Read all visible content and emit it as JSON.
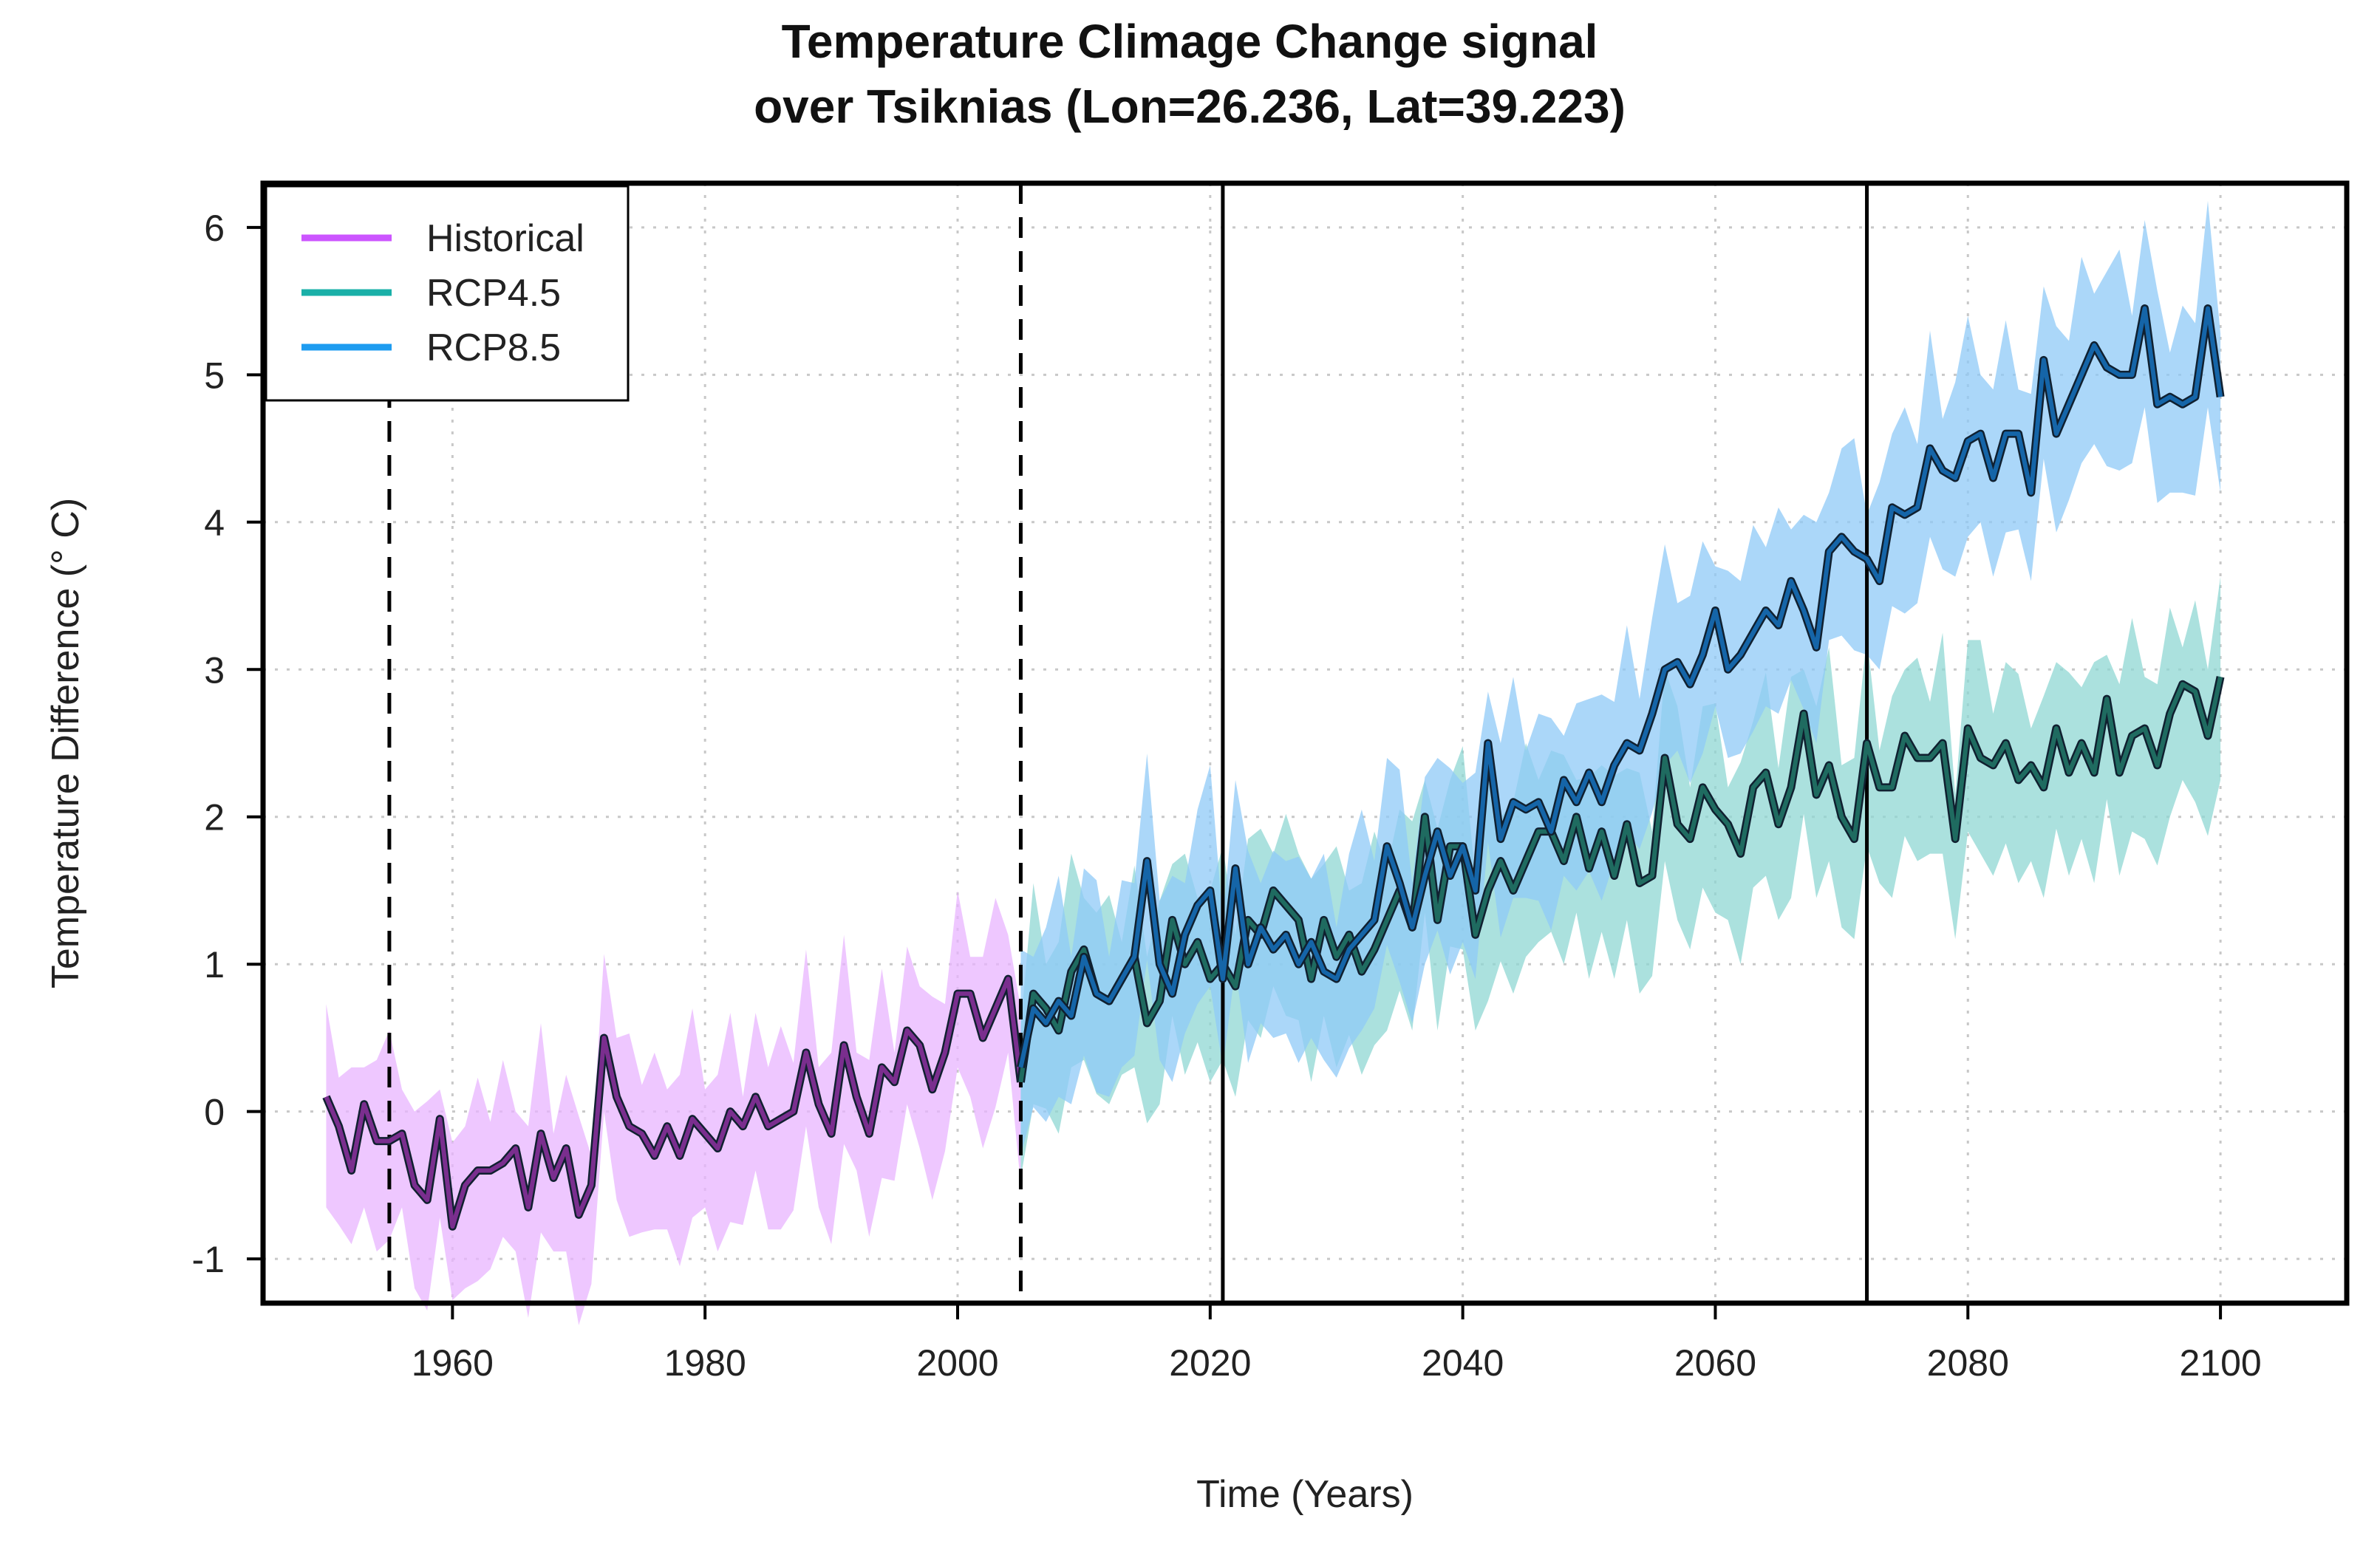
{
  "chart_data": {
    "type": "line",
    "title_line1": "Temperature Climage Change signal",
    "title_line2": "over Tsiknias (Lon=26.236, Lat=39.223)",
    "xlabel": "Time (Years)",
    "ylabel": "Temperature Difference (° C)",
    "xlim": [
      1945,
      2110
    ],
    "ylim": [
      -1.3,
      6.3
    ],
    "x_ticks": [
      1960,
      1980,
      2000,
      2020,
      2040,
      2060,
      2080,
      2100
    ],
    "x_tick_labels": [
      "1960",
      "1980",
      "2000",
      "2020",
      "2040",
      "2060",
      "2080",
      "2100"
    ],
    "y_ticks": [
      -1,
      0,
      1,
      2,
      3,
      4,
      5,
      6
    ],
    "y_tick_labels": [
      "-1",
      "0",
      "1",
      "2",
      "3",
      "4",
      "5",
      "6"
    ],
    "grid": true,
    "legend_position": "top-left",
    "vlines": [
      {
        "x": 1955,
        "style": "dashed"
      },
      {
        "x": 2005,
        "style": "dashed"
      },
      {
        "x": 2021,
        "style": "solid"
      },
      {
        "x": 2072,
        "style": "solid"
      }
    ],
    "series": [
      {
        "name": "Historical",
        "color": "#7a2e8e",
        "legend_color": "#cc55ff",
        "band_color": "#e8b4ff",
        "band_half_width": 0.45,
        "x": [
          1950,
          1951,
          1952,
          1953,
          1954,
          1955,
          1956,
          1957,
          1958,
          1959,
          1960,
          1961,
          1962,
          1963,
          1964,
          1965,
          1966,
          1967,
          1968,
          1969,
          1970,
          1971,
          1972,
          1973,
          1974,
          1975,
          1976,
          1977,
          1978,
          1979,
          1980,
          1981,
          1982,
          1983,
          1984,
          1985,
          1986,
          1987,
          1988,
          1989,
          1990,
          1991,
          1992,
          1993,
          1994,
          1995,
          1996,
          1997,
          1998,
          1999,
          2000,
          2001,
          2002,
          2003,
          2004,
          2005
        ],
        "values": [
          0.1,
          -0.1,
          -0.4,
          0.05,
          -0.2,
          -0.2,
          -0.15,
          -0.5,
          -0.6,
          -0.05,
          -0.78,
          -0.5,
          -0.4,
          -0.4,
          -0.35,
          -0.25,
          -0.65,
          -0.15,
          -0.45,
          -0.25,
          -0.7,
          -0.5,
          0.5,
          0.1,
          -0.1,
          -0.15,
          -0.3,
          -0.1,
          -0.3,
          -0.05,
          -0.15,
          -0.25,
          0.0,
          -0.1,
          0.1,
          -0.1,
          -0.05,
          0.0,
          0.4,
          0.05,
          -0.15,
          0.45,
          0.1,
          -0.15,
          0.3,
          0.2,
          0.55,
          0.45,
          0.15,
          0.4,
          0.8,
          0.8,
          0.5,
          0.7,
          0.9,
          0.2
        ]
      },
      {
        "name": "RCP4.5",
        "color": "#1f6b60",
        "legend_color": "#1ab0a8",
        "band_color": "#8fd7d3",
        "band_half_width": 0.5,
        "x": [
          2005,
          2006,
          2007,
          2008,
          2009,
          2010,
          2011,
          2012,
          2013,
          2014,
          2015,
          2016,
          2017,
          2018,
          2019,
          2020,
          2021,
          2022,
          2023,
          2024,
          2025,
          2026,
          2027,
          2028,
          2029,
          2030,
          2031,
          2032,
          2033,
          2034,
          2035,
          2036,
          2037,
          2038,
          2039,
          2040,
          2041,
          2042,
          2043,
          2044,
          2045,
          2046,
          2047,
          2048,
          2049,
          2050,
          2051,
          2052,
          2053,
          2054,
          2055,
          2056,
          2057,
          2058,
          2059,
          2060,
          2061,
          2062,
          2063,
          2064,
          2065,
          2066,
          2067,
          2068,
          2069,
          2070,
          2071,
          2072,
          2073,
          2074,
          2075,
          2076,
          2077,
          2078,
          2079,
          2080,
          2081,
          2082,
          2083,
          2084,
          2085,
          2086,
          2087,
          2088,
          2089,
          2090,
          2091,
          2092,
          2093,
          2094,
          2095,
          2096,
          2097,
          2098,
          2099,
          2100
        ],
        "values": [
          0.2,
          0.8,
          0.7,
          0.55,
          0.95,
          1.1,
          0.8,
          0.75,
          0.9,
          1.05,
          0.6,
          0.75,
          1.3,
          1.0,
          1.15,
          0.9,
          1.0,
          0.85,
          1.3,
          1.2,
          1.5,
          1.4,
          1.3,
          0.9,
          1.3,
          1.05,
          1.2,
          0.95,
          1.1,
          1.3,
          1.5,
          1.25,
          2.0,
          1.3,
          1.8,
          1.8,
          1.2,
          1.5,
          1.7,
          1.5,
          1.7,
          1.9,
          1.9,
          1.7,
          2.0,
          1.65,
          1.9,
          1.6,
          1.95,
          1.55,
          1.6,
          2.4,
          1.95,
          1.85,
          2.2,
          2.05,
          1.95,
          1.75,
          2.2,
          2.3,
          1.95,
          2.2,
          2.7,
          2.15,
          2.35,
          2.0,
          1.85,
          2.5,
          2.2,
          2.2,
          2.55,
          2.4,
          2.4,
          2.5,
          1.85,
          2.6,
          2.4,
          2.35,
          2.5,
          2.25,
          2.35,
          2.2,
          2.6,
          2.3,
          2.5,
          2.3,
          2.8,
          2.3,
          2.55,
          2.6,
          2.35,
          2.7,
          2.9,
          2.85,
          2.55,
          2.95
        ]
      },
      {
        "name": "RCP8.5",
        "color": "#1565a8",
        "legend_color": "#1e9cf0",
        "band_color": "#8fc9f7",
        "band_half_width": 0.55,
        "x": [
          2005,
          2006,
          2007,
          2008,
          2009,
          2010,
          2011,
          2012,
          2013,
          2014,
          2015,
          2016,
          2017,
          2018,
          2019,
          2020,
          2021,
          2022,
          2023,
          2024,
          2025,
          2026,
          2027,
          2028,
          2029,
          2030,
          2031,
          2032,
          2033,
          2034,
          2035,
          2036,
          2037,
          2038,
          2039,
          2040,
          2041,
          2042,
          2043,
          2044,
          2045,
          2046,
          2047,
          2048,
          2049,
          2050,
          2051,
          2052,
          2053,
          2054,
          2055,
          2056,
          2057,
          2058,
          2059,
          2060,
          2061,
          2062,
          2063,
          2064,
          2065,
          2066,
          2067,
          2068,
          2069,
          2070,
          2071,
          2072,
          2073,
          2074,
          2075,
          2076,
          2077,
          2078,
          2079,
          2080,
          2081,
          2082,
          2083,
          2084,
          2085,
          2086,
          2087,
          2088,
          2089,
          2090,
          2091,
          2092,
          2093,
          2094,
          2095,
          2096,
          2097,
          2098,
          2099,
          2100
        ],
        "values": [
          0.3,
          0.7,
          0.6,
          0.75,
          0.65,
          1.05,
          0.8,
          0.75,
          0.9,
          1.05,
          1.7,
          1.0,
          0.8,
          1.2,
          1.4,
          1.5,
          0.9,
          1.65,
          1.0,
          1.25,
          1.1,
          1.2,
          1.0,
          1.15,
          0.95,
          0.9,
          1.1,
          1.2,
          1.3,
          1.8,
          1.55,
          1.25,
          1.6,
          1.9,
          1.6,
          1.8,
          1.5,
          2.5,
          1.85,
          2.1,
          2.05,
          2.1,
          1.9,
          2.25,
          2.1,
          2.3,
          2.1,
          2.35,
          2.5,
          2.45,
          2.7,
          3.0,
          3.05,
          2.9,
          3.1,
          3.4,
          3.0,
          3.1,
          3.25,
          3.4,
          3.3,
          3.6,
          3.4,
          3.15,
          3.8,
          3.9,
          3.8,
          3.75,
          3.6,
          4.1,
          4.05,
          4.1,
          4.5,
          4.35,
          4.3,
          4.55,
          4.6,
          4.3,
          4.6,
          4.6,
          4.2,
          5.1,
          4.6,
          4.8,
          5.0,
          5.2,
          5.05,
          5.0,
          5.0,
          5.45,
          4.8,
          4.85,
          4.8,
          4.85,
          5.45,
          4.85
        ]
      }
    ]
  }
}
